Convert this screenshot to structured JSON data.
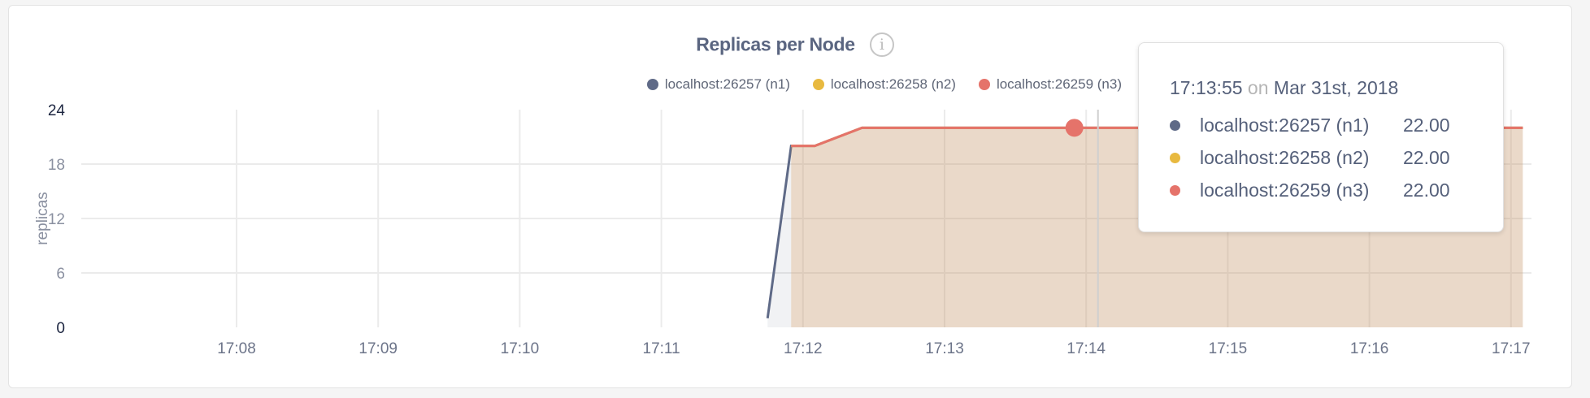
{
  "chart_data": {
    "type": "area",
    "title": "Replicas per Node",
    "ylabel": "replicas",
    "xlabel": "",
    "ylim": [
      0,
      24
    ],
    "yticks": [
      "0",
      "6",
      "12",
      "18",
      "24"
    ],
    "xlim": [
      "17:07:00",
      "17:17:10"
    ],
    "xticks": [
      "17:08",
      "17:09",
      "17:10",
      "17:11",
      "17:12",
      "17:13",
      "17:14",
      "17:15",
      "17:16",
      "17:17"
    ],
    "grid": true,
    "legend_placement": "top-right",
    "series": [
      {
        "name": "localhost:26257 (n1)",
        "color": "#5f6a87",
        "points": [
          [
            "17:11:45",
            1
          ],
          [
            "17:11:55",
            20
          ],
          [
            "17:12:05",
            20
          ],
          [
            "17:12:25",
            22
          ],
          [
            "17:17:05",
            22
          ]
        ]
      },
      {
        "name": "localhost:26258 (n2)",
        "color": "#e8b93f",
        "points": [
          [
            "17:11:55",
            20
          ],
          [
            "17:12:05",
            20
          ],
          [
            "17:12:25",
            22
          ],
          [
            "17:17:05",
            22
          ]
        ]
      },
      {
        "name": "localhost:26259 (n3)",
        "color": "#e5736a",
        "points": [
          [
            "17:11:55",
            20
          ],
          [
            "17:12:05",
            20
          ],
          [
            "17:12:25",
            22
          ],
          [
            "17:17:05",
            22
          ]
        ]
      }
    ],
    "hover": {
      "time": "17:13:55",
      "cursor_time": "17:14:05",
      "value": 22
    }
  },
  "tooltip": {
    "time": "17:13:55",
    "on": "on",
    "date": "Mar 31st, 2018",
    "rows": [
      {
        "name": "localhost:26257 (n1)",
        "value": "22.00",
        "color": "#5f6a87"
      },
      {
        "name": "localhost:26258 (n2)",
        "value": "22.00",
        "color": "#e8b93f"
      },
      {
        "name": "localhost:26259 (n3)",
        "value": "22.00",
        "color": "#e5736a"
      }
    ]
  },
  "info_icon": "info-circle-icon"
}
